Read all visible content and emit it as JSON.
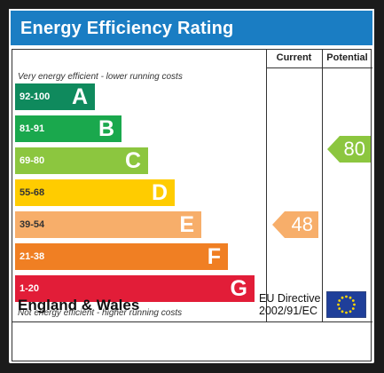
{
  "header": {
    "title": "Energy Efficiency Rating"
  },
  "columns": {
    "current": "Current",
    "potential": "Potential"
  },
  "notes": {
    "top": "Very energy efficient - lower running costs",
    "bottom": "Not energy efficient - higher running costs"
  },
  "bands": [
    {
      "range": "92-100",
      "letter": "A",
      "color": "#0f8a5d"
    },
    {
      "range": "81-91",
      "letter": "B",
      "color": "#1aa84d"
    },
    {
      "range": "69-80",
      "letter": "C",
      "color": "#8cc63f"
    },
    {
      "range": "55-68",
      "letter": "D",
      "color": "#ffcc00"
    },
    {
      "range": "39-54",
      "letter": "E",
      "color": "#f7ae6a"
    },
    {
      "range": "21-38",
      "letter": "F",
      "color": "#f07f23"
    },
    {
      "range": "1-20",
      "letter": "G",
      "color": "#e21d38"
    }
  ],
  "ratings": {
    "current": {
      "value": "48",
      "band": "E",
      "color": "#f7ae6a"
    },
    "potential": {
      "value": "80",
      "band": "C",
      "color": "#8cc63f"
    }
  },
  "footer": {
    "region": "England & Wales",
    "directive_line1": "EU Directive",
    "directive_line2": "2002/91/EC"
  },
  "icons": {
    "flag": "eu-flag-icon"
  }
}
